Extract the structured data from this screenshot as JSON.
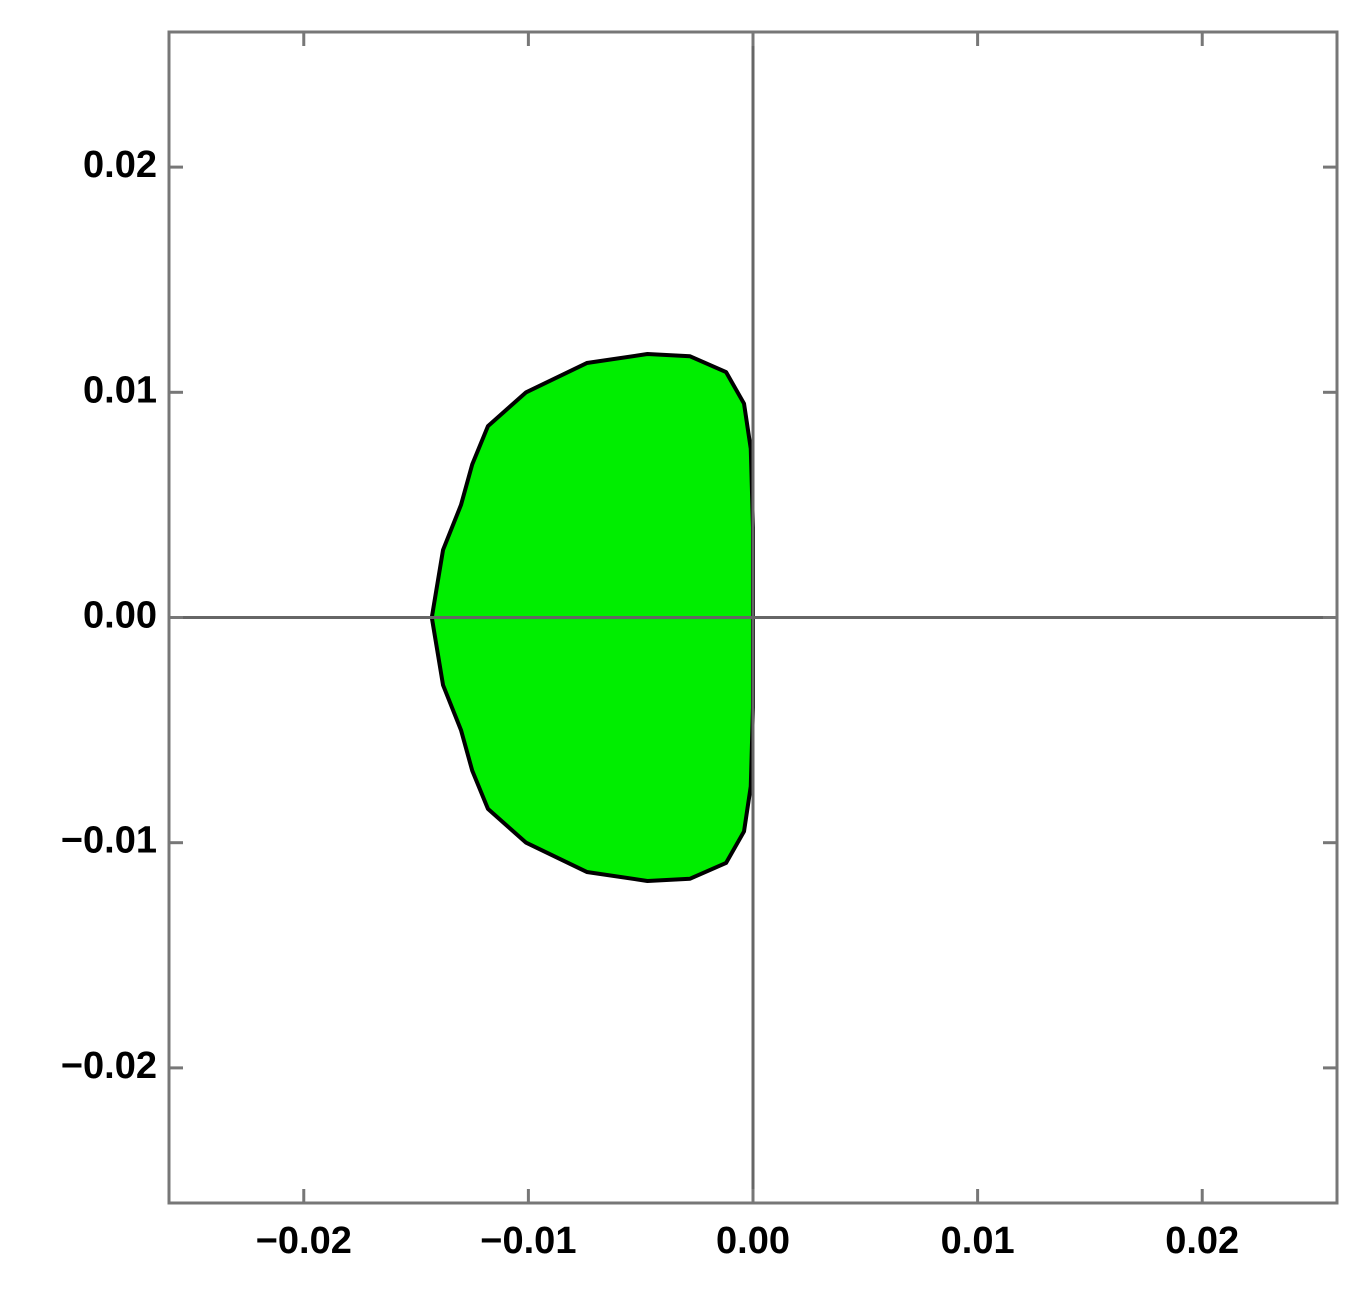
{
  "chart_data": {
    "type": "region",
    "x": [
      0,
      0,
      -0.0001,
      -0.0004,
      -0.0012,
      -0.0028,
      -0.0047,
      -0.0074,
      -0.0101,
      -0.0118,
      -0.0125,
      -0.013,
      -0.0138,
      -0.0143,
      -0.0138,
      -0.013,
      -0.0125,
      -0.0118,
      -0.0101,
      -0.0074,
      -0.0047,
      -0.0028,
      -0.0012,
      -0.0004,
      -0.0001,
      0
    ],
    "y": [
      0,
      0.004,
      0.0075,
      0.0095,
      0.0109,
      0.0116,
      0.0117,
      0.0113,
      0.01,
      0.0085,
      0.0068,
      0.005,
      0.003,
      0,
      -0.003,
      -0.005,
      -0.0068,
      -0.0085,
      -0.01,
      -0.0113,
      -0.0117,
      -0.0116,
      -0.0109,
      -0.0095,
      -0.0075,
      -0.004
    ],
    "color": "#00ee00",
    "edge_color": "#000000",
    "xlim": [
      -0.026,
      0.026
    ],
    "ylim": [
      -0.026,
      0.026
    ],
    "xticks": [
      {
        "value": -0.02,
        "label": "−0.02"
      },
      {
        "value": -0.01,
        "label": "−0.01"
      },
      {
        "value": 0,
        "label": "0.00"
      },
      {
        "value": 0.01,
        "label": "0.01"
      },
      {
        "value": 0.02,
        "label": "0.02"
      }
    ],
    "yticks": [
      {
        "value": -0.02,
        "label": "−0.02"
      },
      {
        "value": -0.01,
        "label": "−0.01"
      },
      {
        "value": 0,
        "label": "0.00"
      },
      {
        "value": 0.01,
        "label": "0.01"
      },
      {
        "value": 0.02,
        "label": "0.02"
      }
    ],
    "axes_through_origin": true
  }
}
